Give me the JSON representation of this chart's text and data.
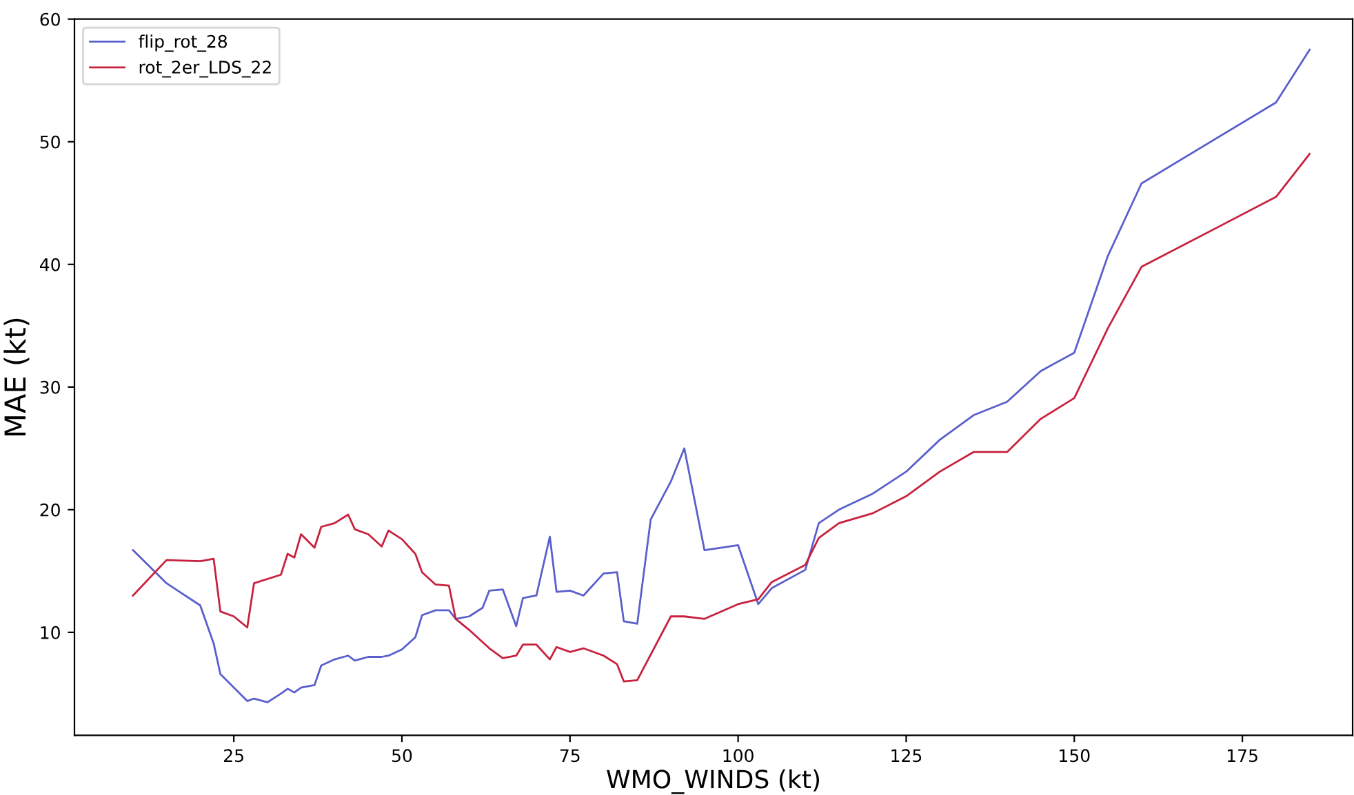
{
  "chart_data": {
    "type": "line",
    "xlabel": "WMO_WINDS (kt)",
    "ylabel": "MAE (kt)",
    "xlim": [
      1.3,
      191.4
    ],
    "ylim": [
      1.6,
      60
    ],
    "xticks": [
      25,
      50,
      75,
      100,
      125,
      150,
      175
    ],
    "yticks": [
      10,
      20,
      30,
      40,
      50,
      60
    ],
    "grid": false,
    "legend": "top left",
    "marker": "none",
    "line_style": "solid",
    "series": [
      {
        "name": "flip_rot_28",
        "color": "#5a5fcc",
        "x": [
          10,
          15,
          20,
          22,
          23,
          25,
          27,
          28,
          30,
          32,
          33,
          34,
          35,
          37,
          38,
          40,
          42,
          43,
          45,
          47,
          48,
          50,
          52,
          53,
          55,
          57,
          58,
          60,
          62,
          63,
          65,
          67,
          68,
          70,
          72,
          73,
          75,
          77,
          80,
          82,
          83,
          85,
          87,
          90,
          92,
          95,
          100,
          103,
          105,
          110,
          112,
          115,
          120,
          125,
          130,
          135,
          140,
          145,
          150,
          155,
          160,
          180,
          185
        ],
        "values": [
          16.7,
          14.0,
          12.2,
          9.1,
          6.6,
          5.5,
          4.4,
          4.6,
          4.3,
          5.0,
          5.4,
          5.1,
          5.5,
          5.7,
          7.3,
          7.8,
          8.1,
          7.7,
          8.0,
          8.0,
          8.1,
          8.6,
          9.6,
          11.4,
          11.8,
          11.8,
          11.1,
          11.3,
          12.0,
          13.4,
          13.5,
          10.5,
          12.8,
          13.0,
          17.8,
          13.3,
          13.4,
          13.0,
          14.8,
          14.9,
          10.9,
          10.7,
          19.2,
          22.3,
          25.0,
          16.7,
          17.1,
          12.3,
          13.6,
          15.1,
          18.9,
          20.0,
          21.3,
          23.1,
          25.7,
          27.7,
          28.8,
          31.3,
          32.8,
          40.7,
          46.6,
          53.2,
          57.5
        ]
      },
      {
        "name": "rot_2er_LDS_22",
        "color": "#c8213e",
        "x": [
          10,
          15,
          20,
          22,
          23,
          25,
          27,
          28,
          32,
          33,
          34,
          35,
          37,
          38,
          40,
          42,
          43,
          45,
          47,
          48,
          50,
          52,
          53,
          55,
          57,
          58,
          60,
          63,
          65,
          67,
          68,
          70,
          72,
          73,
          75,
          77,
          80,
          82,
          83,
          85,
          90,
          92,
          95,
          100,
          103,
          105,
          110,
          112,
          115,
          120,
          125,
          130,
          135,
          140,
          145,
          150,
          155,
          160,
          180,
          185
        ],
        "values": [
          13.0,
          15.9,
          15.8,
          16.0,
          11.7,
          11.3,
          10.4,
          14.0,
          14.7,
          16.4,
          16.1,
          18.0,
          16.9,
          18.6,
          18.9,
          19.6,
          18.4,
          18.0,
          17.0,
          18.3,
          17.6,
          16.4,
          14.9,
          13.9,
          13.8,
          11.1,
          10.2,
          8.7,
          7.9,
          8.1,
          9.0,
          9.0,
          7.8,
          8.8,
          8.4,
          8.7,
          8.1,
          7.4,
          6.0,
          6.1,
          11.3,
          11.3,
          11.1,
          12.3,
          12.7,
          14.1,
          15.5,
          17.7,
          18.9,
          19.7,
          21.1,
          23.1,
          24.7,
          24.7,
          27.4,
          29.1,
          34.8,
          39.8,
          45.5,
          49.0
        ]
      }
    ]
  }
}
